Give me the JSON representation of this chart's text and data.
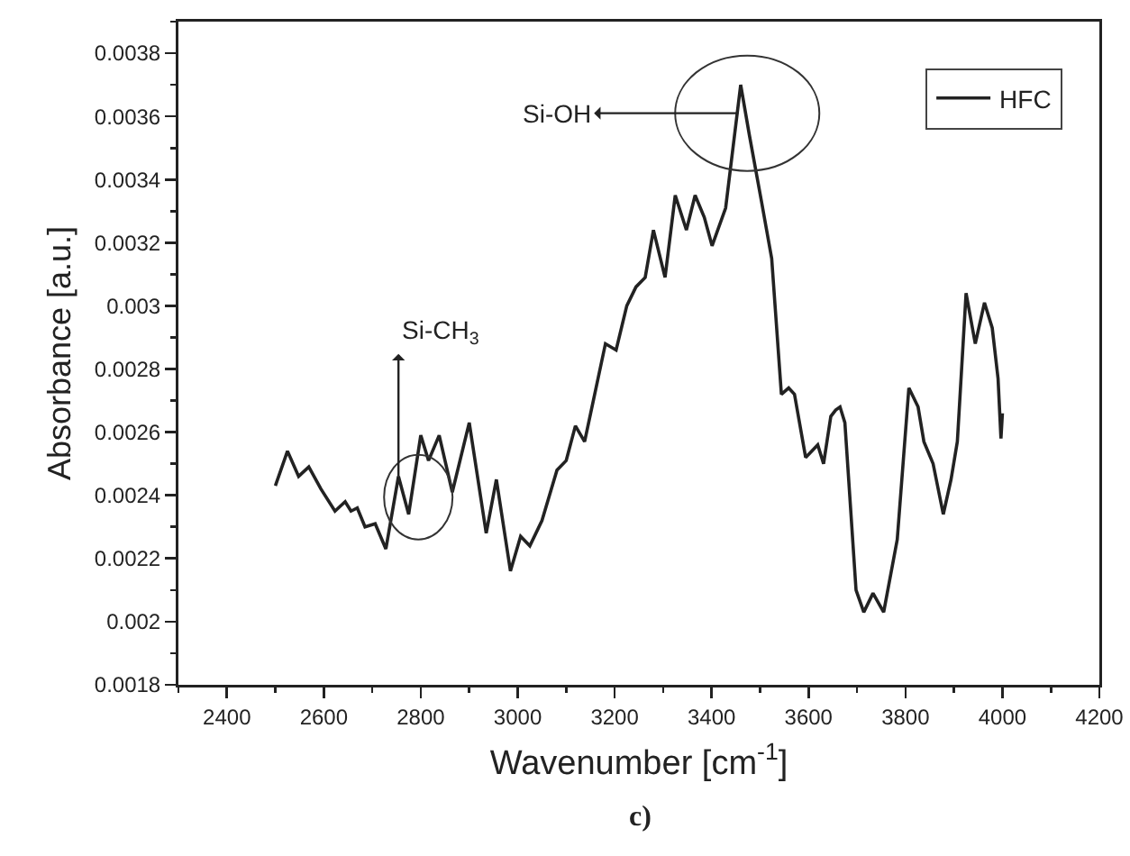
{
  "chart_data": {
    "type": "line",
    "xlabel": "Wavenumber [cm$^{-1}$]",
    "ylabel": "Absorbance [a.u.]",
    "xlim": [
      2300,
      4200
    ],
    "xticks": [
      2400,
      2600,
      2800,
      3000,
      3200,
      3400,
      3600,
      3800,
      4000,
      4200
    ],
    "ylim": [
      0.0018,
      0.0039
    ],
    "yticks": [
      0.0018,
      0.002,
      0.0022,
      0.0024,
      0.0026,
      0.0028,
      0.003,
      0.0032,
      0.0034,
      0.0036,
      0.0038
    ],
    "grid": false,
    "legend": "top right",
    "marker": "none",
    "line_style": "solid",
    "series": [
      {
        "name": "HFC",
        "color": "#222222",
        "x": [
          2500,
          2525,
          2548,
          2569,
          2594,
          2623,
          2644,
          2656,
          2669,
          2685,
          2706,
          2728,
          2754,
          2775,
          2800,
          2816,
          2838,
          2865,
          2900,
          2935,
          2956,
          2985,
          3006,
          3025,
          3050,
          3081,
          3100,
          3119,
          3138,
          3156,
          3181,
          3203,
          3225,
          3244,
          3263,
          3280,
          3304,
          3325,
          3348,
          3366,
          3385,
          3401,
          3429,
          3460,
          3478,
          3503,
          3524,
          3544,
          3559,
          3571,
          3594,
          3619,
          3631,
          3646,
          3656,
          3665,
          3675,
          3698,
          3714,
          3733,
          3755,
          3783,
          3807,
          3826,
          3838,
          3857,
          3878,
          3894,
          3907,
          3925,
          3944,
          3963,
          3979,
          3991,
          3997,
          4000
        ],
        "values": [
          0.00243,
          0.00254,
          0.00246,
          0.00249,
          0.00242,
          0.00235,
          0.00238,
          0.00235,
          0.00236,
          0.0023,
          0.00231,
          0.00223,
          0.00246,
          0.00234,
          0.00259,
          0.00251,
          0.00259,
          0.00241,
          0.00263,
          0.00228,
          0.00245,
          0.00216,
          0.00227,
          0.00224,
          0.00232,
          0.00248,
          0.00251,
          0.00262,
          0.00257,
          0.0027,
          0.00288,
          0.00286,
          0.003,
          0.00306,
          0.00309,
          0.00324,
          0.00309,
          0.00335,
          0.00324,
          0.00335,
          0.00328,
          0.00319,
          0.00331,
          0.0037,
          0.00354,
          0.00333,
          0.00315,
          0.00272,
          0.00274,
          0.00272,
          0.00252,
          0.00256,
          0.0025,
          0.00265,
          0.00267,
          0.00268,
          0.00263,
          0.0021,
          0.00203,
          0.00209,
          0.00203,
          0.00226,
          0.00274,
          0.00268,
          0.00257,
          0.0025,
          0.00234,
          0.00245,
          0.00257,
          0.00304,
          0.00288,
          0.00301,
          0.00293,
          0.00277,
          0.00258,
          0.00266
        ]
      }
    ],
    "annotations": [
      {
        "text": "Si-OH",
        "x": 3455,
        "y": 0.00361
      },
      {
        "text": "Si-CH$_{3}$",
        "x": 2754,
        "y": 0.00246
      },
      "c)"
    ]
  }
}
